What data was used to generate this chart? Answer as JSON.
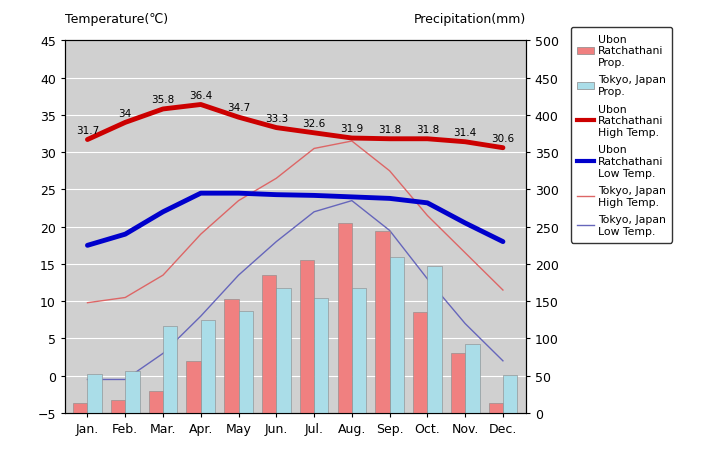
{
  "months": [
    "Jan.",
    "Feb.",
    "Mar.",
    "Apr.",
    "May",
    "Jun.",
    "Jul.",
    "Aug.",
    "Sep.",
    "Oct.",
    "Nov.",
    "Dec."
  ],
  "ubon_precip": [
    14,
    18,
    30,
    70,
    153,
    185,
    205,
    255,
    244,
    135,
    80,
    14
  ],
  "tokyo_precip": [
    52,
    56,
    117,
    125,
    137,
    168,
    154,
    168,
    209,
    197,
    92,
    51
  ],
  "ubon_high": [
    31.7,
    34.0,
    35.8,
    36.4,
    34.7,
    33.3,
    32.6,
    31.9,
    31.8,
    31.8,
    31.4,
    30.6
  ],
  "ubon_low": [
    17.5,
    19.0,
    22.0,
    24.5,
    24.5,
    24.3,
    24.2,
    24.0,
    23.8,
    23.2,
    20.5,
    18.0
  ],
  "tokyo_high": [
    9.8,
    10.5,
    13.5,
    19.0,
    23.5,
    26.5,
    30.5,
    31.5,
    27.5,
    21.5,
    16.5,
    11.5
  ],
  "tokyo_low": [
    -0.5,
    -0.5,
    3.0,
    8.0,
    13.5,
    18.0,
    22.0,
    23.5,
    19.5,
    13.0,
    7.0,
    2.0
  ],
  "ubon_high_labels": [
    "31.7",
    "34",
    "35.8",
    "36.4",
    "34.7",
    "33.3",
    "32.6",
    "31.9",
    "31.8",
    "31.8",
    "31.4",
    "30.6"
  ],
  "temp_ylim": [
    -5,
    45
  ],
  "precip_ylim": [
    0,
    500
  ],
  "bg_color": "#d0d0d0",
  "ubon_precip_color": "#f08080",
  "tokyo_precip_color": "#aadde8",
  "ubon_high_color": "#cc0000",
  "ubon_low_color": "#0000cc",
  "tokyo_high_color": "#dd6666",
  "tokyo_low_color": "#6666bb",
  "title_left": "Temperature(℃)",
  "title_right": "Precipitation(mm)",
  "temp_yticks": [
    -5,
    0,
    5,
    10,
    15,
    20,
    25,
    30,
    35,
    40,
    45
  ],
  "precip_yticks": [
    0,
    50,
    100,
    150,
    200,
    250,
    300,
    350,
    400,
    450,
    500
  ]
}
